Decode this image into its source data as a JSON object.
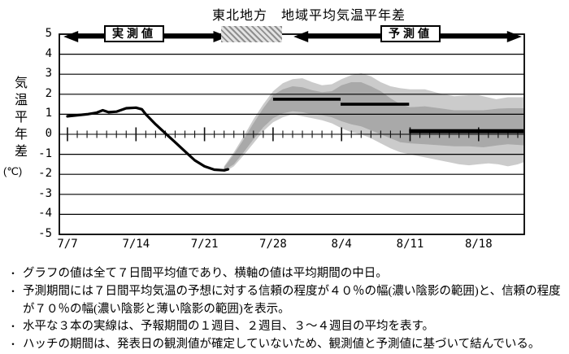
{
  "title": "東北地方　地域平均気温平年差",
  "header": {
    "observed_label": "実測値",
    "forecast_label": "予測値",
    "hatch_icon": "diagonal-hatch"
  },
  "colors": {
    "band_40_dark": "#a9a9a9",
    "band_70_light": "#cbcbcb",
    "line": "#000000",
    "hatch_gray": "#8f8f8f"
  },
  "chart_data": {
    "type": "line",
    "title": "東北地方　地域平均気温平年差",
    "ylabel": "気温平年差",
    "ylabel_unit": "(℃)",
    "ylim": [
      -5,
      5
    ],
    "yticks": [
      5,
      4,
      3,
      2,
      1,
      0,
      -1,
      -2,
      -3,
      -4,
      -5
    ],
    "grid": true,
    "x_unit": "days_since_7/7",
    "x_range_days": [
      -0.85,
      46.7
    ],
    "xtick_days": [
      0,
      7,
      14,
      21,
      28,
      35,
      42
    ],
    "xticklabels": [
      "7/7",
      "7/14",
      "7/21",
      "7/28",
      "8/4",
      "8/11",
      "8/18"
    ],
    "hatch_period": {
      "from_day": 15.7,
      "to_day": 21.9
    },
    "observed_arrow_days": [
      -0.4,
      16.4
    ],
    "forecast_arrow_days": [
      23.1,
      46.4
    ],
    "series": [
      {
        "name": "observed_7day_mean_anomaly",
        "points": [
          [
            0,
            0.9
          ],
          [
            1,
            0.95
          ],
          [
            2,
            1.0
          ],
          [
            3,
            1.08
          ],
          [
            3.6,
            1.2
          ],
          [
            4.2,
            1.1
          ],
          [
            5,
            1.13
          ],
          [
            6,
            1.3
          ],
          [
            7,
            1.33
          ],
          [
            7.6,
            1.25
          ],
          [
            8,
            1.0
          ],
          [
            9,
            0.5
          ],
          [
            10,
            0.05
          ],
          [
            11,
            -0.4
          ],
          [
            12,
            -0.85
          ],
          [
            13,
            -1.3
          ],
          [
            14,
            -1.6
          ],
          [
            15,
            -1.77
          ],
          [
            16,
            -1.8
          ],
          [
            16.4,
            -1.75
          ]
        ]
      }
    ],
    "bands": {
      "confidence_40_upper": [
        [
          16,
          -1.65
        ],
        [
          17,
          -1.0
        ],
        [
          18,
          -0.25
        ],
        [
          19,
          0.55
        ],
        [
          20,
          1.3
        ],
        [
          21,
          1.95
        ],
        [
          22,
          2.25
        ],
        [
          23,
          2.4
        ],
        [
          24,
          2.35
        ],
        [
          25,
          2.2
        ],
        [
          26,
          2.1
        ],
        [
          27,
          2.15
        ],
        [
          28,
          2.45
        ],
        [
          29,
          2.6
        ],
        [
          30,
          2.6
        ],
        [
          31,
          2.4
        ],
        [
          32,
          2.15
        ],
        [
          33,
          1.8
        ],
        [
          34,
          1.5
        ],
        [
          35,
          1.35
        ],
        [
          36.5,
          1.4
        ],
        [
          38,
          1.3
        ],
        [
          39.5,
          1.2
        ],
        [
          41,
          1.2
        ],
        [
          42.5,
          1.2
        ],
        [
          44,
          1.28
        ],
        [
          45,
          1.3
        ],
        [
          46.6,
          1.3
        ]
      ],
      "confidence_40_lower": [
        [
          16,
          -1.8
        ],
        [
          17,
          -1.5
        ],
        [
          18,
          -0.9
        ],
        [
          19,
          -0.25
        ],
        [
          20,
          0.35
        ],
        [
          21,
          0.8
        ],
        [
          22,
          1.05
        ],
        [
          23,
          1.15
        ],
        [
          24,
          1.1
        ],
        [
          25,
          1.0
        ],
        [
          26,
          0.95
        ],
        [
          27,
          0.85
        ],
        [
          28,
          0.65
        ],
        [
          29,
          0.5
        ],
        [
          30,
          0.4
        ],
        [
          31,
          0.2
        ],
        [
          32,
          0.0
        ],
        [
          33,
          -0.2
        ],
        [
          34,
          -0.4
        ],
        [
          35,
          -0.45
        ],
        [
          36.5,
          -0.5
        ],
        [
          38,
          -0.55
        ],
        [
          39.5,
          -0.6
        ],
        [
          41,
          -0.6
        ],
        [
          42.5,
          -0.65
        ],
        [
          44,
          -0.55
        ],
        [
          45,
          -0.5
        ],
        [
          46.6,
          -0.55
        ]
      ],
      "confidence_70_upper": [
        [
          16,
          -1.6
        ],
        [
          17,
          -0.9
        ],
        [
          18,
          -0.1
        ],
        [
          19,
          0.75
        ],
        [
          20,
          1.5
        ],
        [
          21,
          2.15
        ],
        [
          22,
          2.55
        ],
        [
          23,
          2.75
        ],
        [
          24,
          2.8
        ],
        [
          25,
          2.6
        ],
        [
          26,
          2.45
        ],
        [
          27,
          2.5
        ],
        [
          28,
          2.75
        ],
        [
          29,
          2.95
        ],
        [
          30,
          3.05
        ],
        [
          31,
          2.9
        ],
        [
          32,
          2.6
        ],
        [
          33,
          2.4
        ],
        [
          34,
          2.3
        ],
        [
          35,
          2.25
        ],
        [
          36.5,
          2.25
        ],
        [
          38,
          2.05
        ],
        [
          39.5,
          1.9
        ],
        [
          41,
          1.95
        ],
        [
          42,
          1.95
        ],
        [
          43.8,
          1.75
        ],
        [
          45,
          1.85
        ],
        [
          46.6,
          1.85
        ]
      ],
      "confidence_70_lower": [
        [
          16,
          -1.9
        ],
        [
          17,
          -1.6
        ],
        [
          18,
          -1.05
        ],
        [
          19,
          -0.45
        ],
        [
          20,
          0.15
        ],
        [
          21,
          0.6
        ],
        [
          22,
          0.85
        ],
        [
          23,
          1.0
        ],
        [
          24,
          0.9
        ],
        [
          25,
          0.8
        ],
        [
          26,
          0.7
        ],
        [
          27,
          0.55
        ],
        [
          28,
          0.3
        ],
        [
          29,
          0.1
        ],
        [
          30,
          0.0
        ],
        [
          31,
          -0.2
        ],
        [
          32,
          -0.45
        ],
        [
          33,
          -0.7
        ],
        [
          34,
          -0.9
        ],
        [
          35,
          -1.0
        ],
        [
          36,
          -1.1
        ],
        [
          37,
          -1.2
        ],
        [
          38,
          -1.3
        ],
        [
          39,
          -1.4
        ],
        [
          40,
          -1.5
        ],
        [
          41,
          -1.55
        ],
        [
          42,
          -1.5
        ],
        [
          43,
          -1.45
        ],
        [
          44,
          -1.5
        ],
        [
          45,
          -1.6
        ],
        [
          46,
          -1.5
        ],
        [
          46.6,
          -1.4
        ]
      ]
    },
    "week_means": [
      {
        "label": "1週目",
        "value": 1.75,
        "from_day": 21.0,
        "to_day": 27.9
      },
      {
        "label": "2週目",
        "value": 1.5,
        "from_day": 27.9,
        "to_day": 34.9
      },
      {
        "label": "3～4週目",
        "value": 0.15,
        "from_day": 34.9,
        "to_day": 46.6
      }
    ]
  },
  "footer": {
    "bullets": [
      "グラフの値は全て７日間平均値であり、横軸の値は平均期間の中日。",
      "予測期間には７日間平均気温の予想に対する信頼の程度が４０％の幅(濃い陰影の範囲)と、信頼の程度が７０％の幅(濃い陰影と薄い陰影の範囲)を表示。",
      "水平な３本の実線は、予報期間の１週目、２週目、３～４週目の平均を表す。",
      "ハッチの期間は、発表日の観測値が確定していないため、観測値と予測値に基づいて結んでいる。"
    ],
    "bullet_char": "・"
  }
}
